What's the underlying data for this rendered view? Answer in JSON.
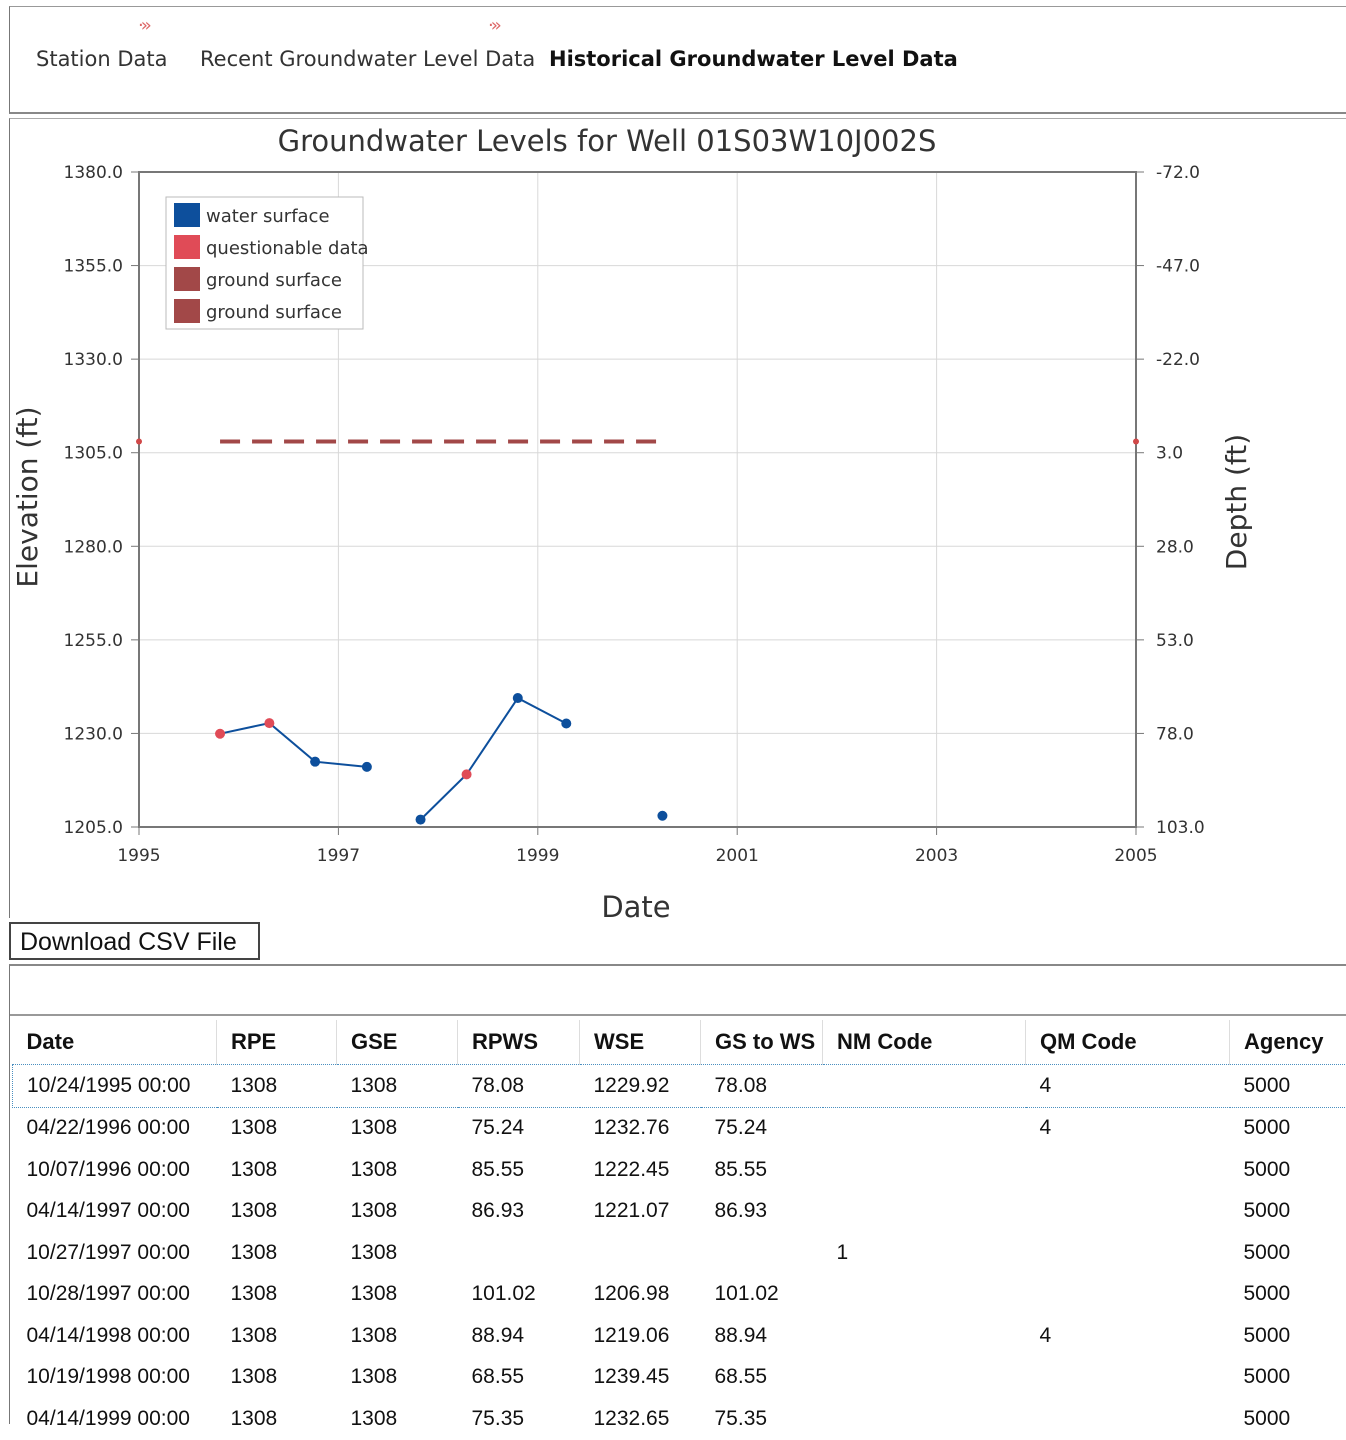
{
  "tabs": [
    {
      "label": "Station Data",
      "active": false
    },
    {
      "label": "Recent Groundwater Level Data",
      "active": false
    },
    {
      "label": "Historical Groundwater Level Data",
      "active": true
    }
  ],
  "tab_arrow_glyph": "·»",
  "chart": {
    "title": "Groundwater Levels for Well 01S03W10J002S",
    "xlabel": "Date",
    "ylabel_left": "Elevation (ft)",
    "ylabel_right": "Depth (ft)",
    "left_ticks": [
      "1380.0",
      "1355.0",
      "1330.0",
      "1305.0",
      "1280.0",
      "1255.0",
      "1230.0",
      "1205.0"
    ],
    "right_ticks": [
      "-72.0",
      "-47.0",
      "-22.0",
      "3.0",
      "28.0",
      "53.0",
      "78.0",
      "103.0"
    ],
    "x_ticks": [
      "1995",
      "1997",
      "1999",
      "2001",
      "2003",
      "2005"
    ],
    "legend": [
      {
        "label": "water surface",
        "color": "#0d4f9c"
      },
      {
        "label": "questionable data",
        "color": "#e04b57"
      },
      {
        "label": "ground surface",
        "color": "#a24848"
      },
      {
        "label": "ground surface",
        "color": "#a24848"
      }
    ]
  },
  "chart_data": {
    "type": "line",
    "title": "Groundwater Levels for Well 01S03W10J002S",
    "xlabel": "Date",
    "ylabel": "Elevation (ft)",
    "y2label": "Depth (ft)",
    "xlim": [
      1995,
      2005
    ],
    "ylim": [
      1205,
      1380
    ],
    "y2lim": [
      -72,
      103
    ],
    "grid": true,
    "legend_position": "top-left",
    "series": [
      {
        "name": "water surface",
        "color": "#0d4f9c",
        "points": [
          {
            "x": "10/24/1995",
            "y": 1229.92,
            "questionable": true
          },
          {
            "x": "04/22/1996",
            "y": 1232.76,
            "questionable": true
          },
          {
            "x": "10/07/1996",
            "y": 1222.45,
            "questionable": false
          },
          {
            "x": "04/14/1997",
            "y": 1221.07,
            "questionable": false
          },
          {
            "x": "10/28/1997",
            "y": 1206.98,
            "questionable": false
          },
          {
            "x": "04/14/1998",
            "y": 1219.06,
            "questionable": true
          },
          {
            "x": "10/19/1998",
            "y": 1239.45,
            "questionable": false
          },
          {
            "x": "04/14/1999",
            "y": 1232.65,
            "questionable": false
          },
          {
            "x": "04/1/2000",
            "y": 1208,
            "questionable": false,
            "isolated": true
          }
        ]
      },
      {
        "name": "ground surface",
        "color": "#a24848",
        "dashed": true,
        "from": "10/24/1995",
        "to": "04/1/2000",
        "y": 1308
      }
    ]
  },
  "download_label": "Download CSV File",
  "table": {
    "columns": [
      "Date",
      "RPE",
      "GSE",
      "RPWS",
      "WSE",
      "GS to WS",
      "NM Code",
      "QM Code",
      "Agency"
    ],
    "rows": [
      [
        "10/24/1995 00:00",
        "1308",
        "1308",
        "78.08",
        "1229.92",
        "78.08",
        "",
        "4",
        "5000"
      ],
      [
        "04/22/1996 00:00",
        "1308",
        "1308",
        "75.24",
        "1232.76",
        "75.24",
        "",
        "4",
        "5000"
      ],
      [
        "10/07/1996 00:00",
        "1308",
        "1308",
        "85.55",
        "1222.45",
        "85.55",
        "",
        "",
        "5000"
      ],
      [
        "04/14/1997 00:00",
        "1308",
        "1308",
        "86.93",
        "1221.07",
        "86.93",
        "",
        "",
        "5000"
      ],
      [
        "10/27/1997 00:00",
        "1308",
        "1308",
        "",
        "",
        "",
        "1",
        "",
        "5000"
      ],
      [
        "10/28/1997 00:00",
        "1308",
        "1308",
        "101.02",
        "1206.98",
        "101.02",
        "",
        "",
        "5000"
      ],
      [
        "04/14/1998 00:00",
        "1308",
        "1308",
        "88.94",
        "1219.06",
        "88.94",
        "",
        "4",
        "5000"
      ],
      [
        "10/19/1998 00:00",
        "1308",
        "1308",
        "68.55",
        "1239.45",
        "68.55",
        "",
        "",
        "5000"
      ],
      [
        "04/14/1999 00:00",
        "1308",
        "1308",
        "75.35",
        "1232.65",
        "75.35",
        "",
        "",
        "5000"
      ]
    ]
  }
}
